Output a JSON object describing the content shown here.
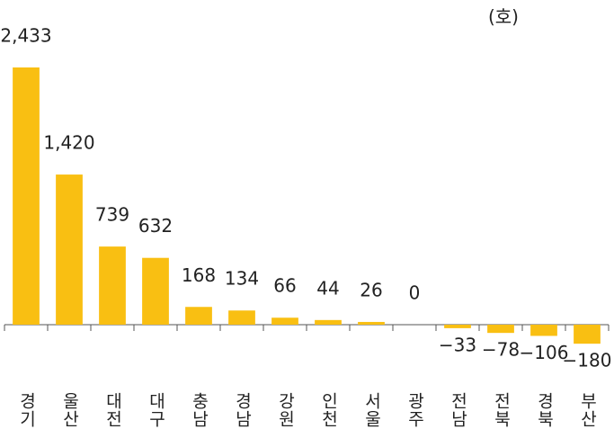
{
  "chart_data": {
    "type": "bar",
    "unit": "(호)",
    "categories": [
      "경기",
      "울산",
      "대전",
      "대구",
      "충남",
      "경남",
      "강원",
      "인천",
      "서울",
      "광주",
      "전남",
      "전북",
      "경북",
      "부산"
    ],
    "values": [
      2433,
      1420,
      739,
      632,
      168,
      134,
      66,
      44,
      26,
      0,
      -33,
      -78,
      -106,
      -180
    ],
    "value_labels": [
      "2,433",
      "1,420",
      "739",
      "632",
      "168",
      "134",
      "66",
      "44",
      "26",
      "0",
      "−33",
      "−78",
      "−106",
      "−180"
    ],
    "color": "#f9bf12"
  }
}
